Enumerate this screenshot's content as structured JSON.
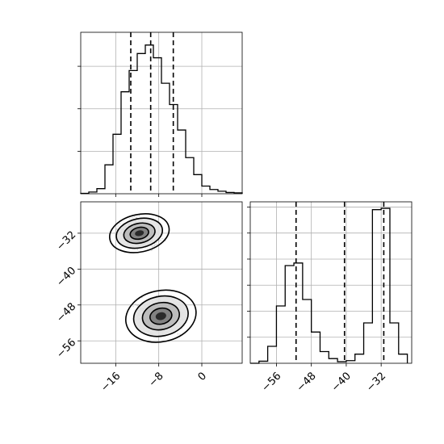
{
  "chart_data": [
    {
      "panel": "marginal-histogram-x",
      "type": "histogram",
      "xlim": [
        -22.5,
        7.5
      ],
      "show_xticklabels": false,
      "yticks_labeled": false,
      "grid": true,
      "bin_edges": [
        -22.5,
        -21,
        -19.5,
        -18,
        -16.5,
        -15,
        -13.5,
        -12,
        -10.5,
        -9,
        -7.5,
        -6,
        -4.5,
        -3,
        -1.5,
        0,
        1.5,
        3,
        4.5,
        6,
        7.5
      ],
      "counts": [
        1,
        4,
        12,
        68,
        140,
        240,
        290,
        330,
        350,
        320,
        260,
        210,
        150,
        85,
        45,
        18,
        10,
        6,
        3,
        2
      ],
      "ylim": [
        0,
        380
      ],
      "quantiles": [
        -13.2,
        -9.5,
        -5.3
      ]
    },
    {
      "panel": "2d-density-x-y",
      "type": "scatter",
      "xlim": [
        -22.5,
        7.5
      ],
      "ylim": [
        -61,
        -25
      ],
      "xticks": [
        -16,
        -8,
        0
      ],
      "xticklabels": [
        "−16",
        "−8",
        "0"
      ],
      "yticks": [
        -32,
        -40,
        -48,
        -56
      ],
      "yticklabels": [
        "−32",
        "−40",
        "−48",
        "−56"
      ],
      "grid": true,
      "clusters": [
        {
          "center_x": -11.6,
          "center_y": -32.0,
          "spread_x": 2.8,
          "spread_y": 2.2
        },
        {
          "center_x": -7.6,
          "center_y": -50.5,
          "spread_x": 3.3,
          "spread_y": 3.0
        }
      ],
      "contour_levels": 4
    },
    {
      "panel": "marginal-histogram-y",
      "type": "histogram",
      "xlim": [
        -62,
        -25
      ],
      "xticks": [
        -56,
        -48,
        -40,
        -32
      ],
      "xticklabels": [
        "−56",
        "−48",
        "−40",
        "−32"
      ],
      "yticks_labeled": false,
      "grid": true,
      "bin_edges": [
        -62,
        -60,
        -58,
        -56,
        -54,
        -52,
        -50,
        -48,
        -46,
        -44,
        -42,
        -40,
        -38,
        -36,
        -34,
        -32,
        -30,
        -28,
        -26
      ],
      "counts": [
        0,
        8,
        65,
        220,
        375,
        385,
        245,
        120,
        45,
        18,
        6,
        10,
        35,
        155,
        590,
        595,
        155,
        35
      ],
      "ylim": [
        0,
        620
      ],
      "quantiles": [
        -51.5,
        -40.4,
        -31.4
      ]
    }
  ]
}
